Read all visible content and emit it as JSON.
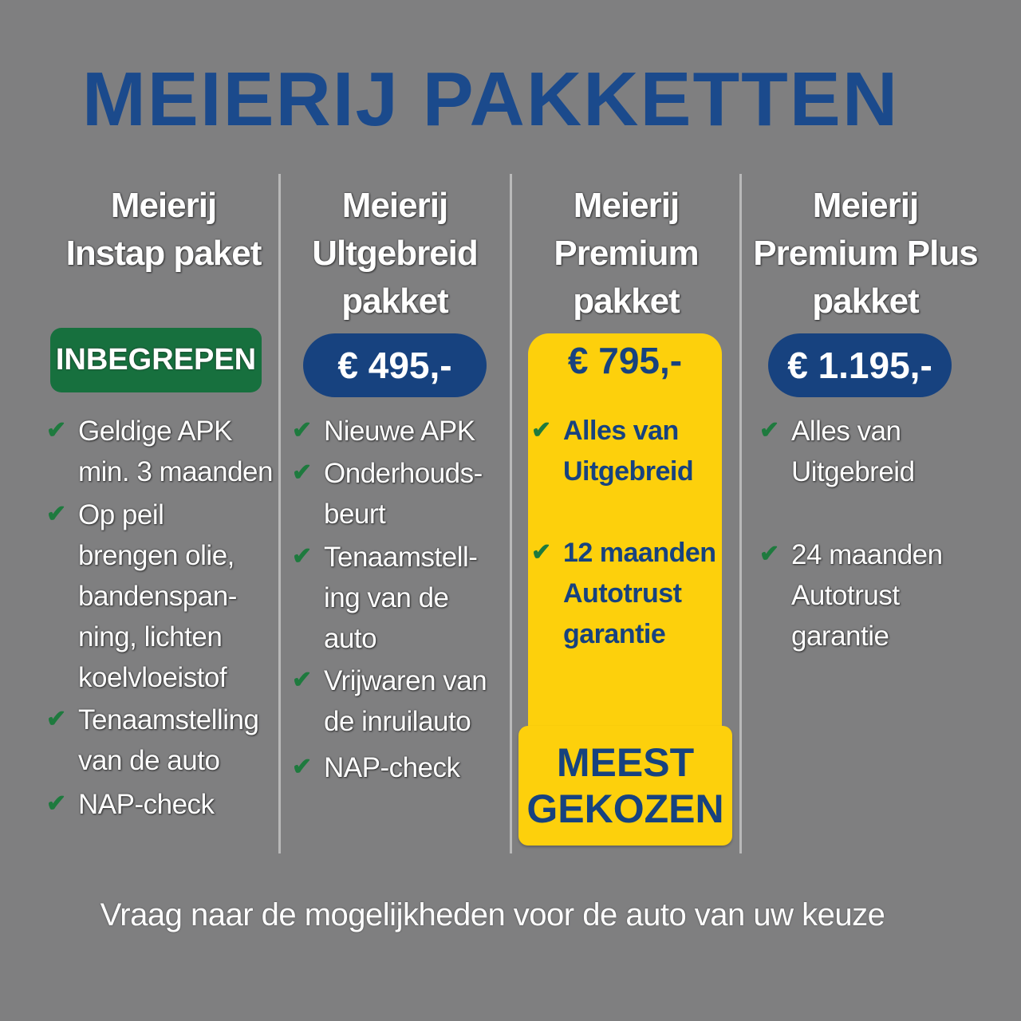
{
  "title": "MEIERIJ PAKKETTEN",
  "colors": {
    "background": "#7f7f80",
    "brand_blue": "#17427f",
    "green": "#17703e",
    "yellow": "#fdd00c",
    "check": "#1e7a3e"
  },
  "icons": {
    "check": "check-icon"
  },
  "packages": [
    {
      "name": "Meierij\nInstap paket",
      "price": "INBEGREPEN",
      "features": [
        "Geldige APK\nmin. 3 maanden",
        "Op peil\nbrengen olie,\nbandenspan-\nning, lichten\nkoelvloeistof",
        "Tenaamstelling\nvan de auto",
        "NAP-check"
      ]
    },
    {
      "name": "Meierij\nUltgebreid\npakket",
      "price": "€ 495,-",
      "features": [
        "Nieuwe APK",
        "Onderhouds-\nbeurt",
        "Tenaamstell-\ning van de\nauto",
        "Vrijwaren van\nde inruilauto",
        "NAP-check"
      ]
    },
    {
      "name": "Meierij\nPremium\npakket",
      "price": "€ 795,-",
      "features": [
        "Alles van\nUitgebreid",
        "12 maanden\nAutotrust\ngarantie"
      ],
      "highlight": "MEEST\nGEKOZEN"
    },
    {
      "name": "Meierij\nPremium Plus\npakket",
      "price": "€ 1.195,-",
      "features": [
        "Alles van\nUitgebreid",
        "24 maanden\nAutotrust\ngarantie"
      ]
    }
  ],
  "footer": "Vraag naar de mogelijkheden voor de auto van uw keuze"
}
